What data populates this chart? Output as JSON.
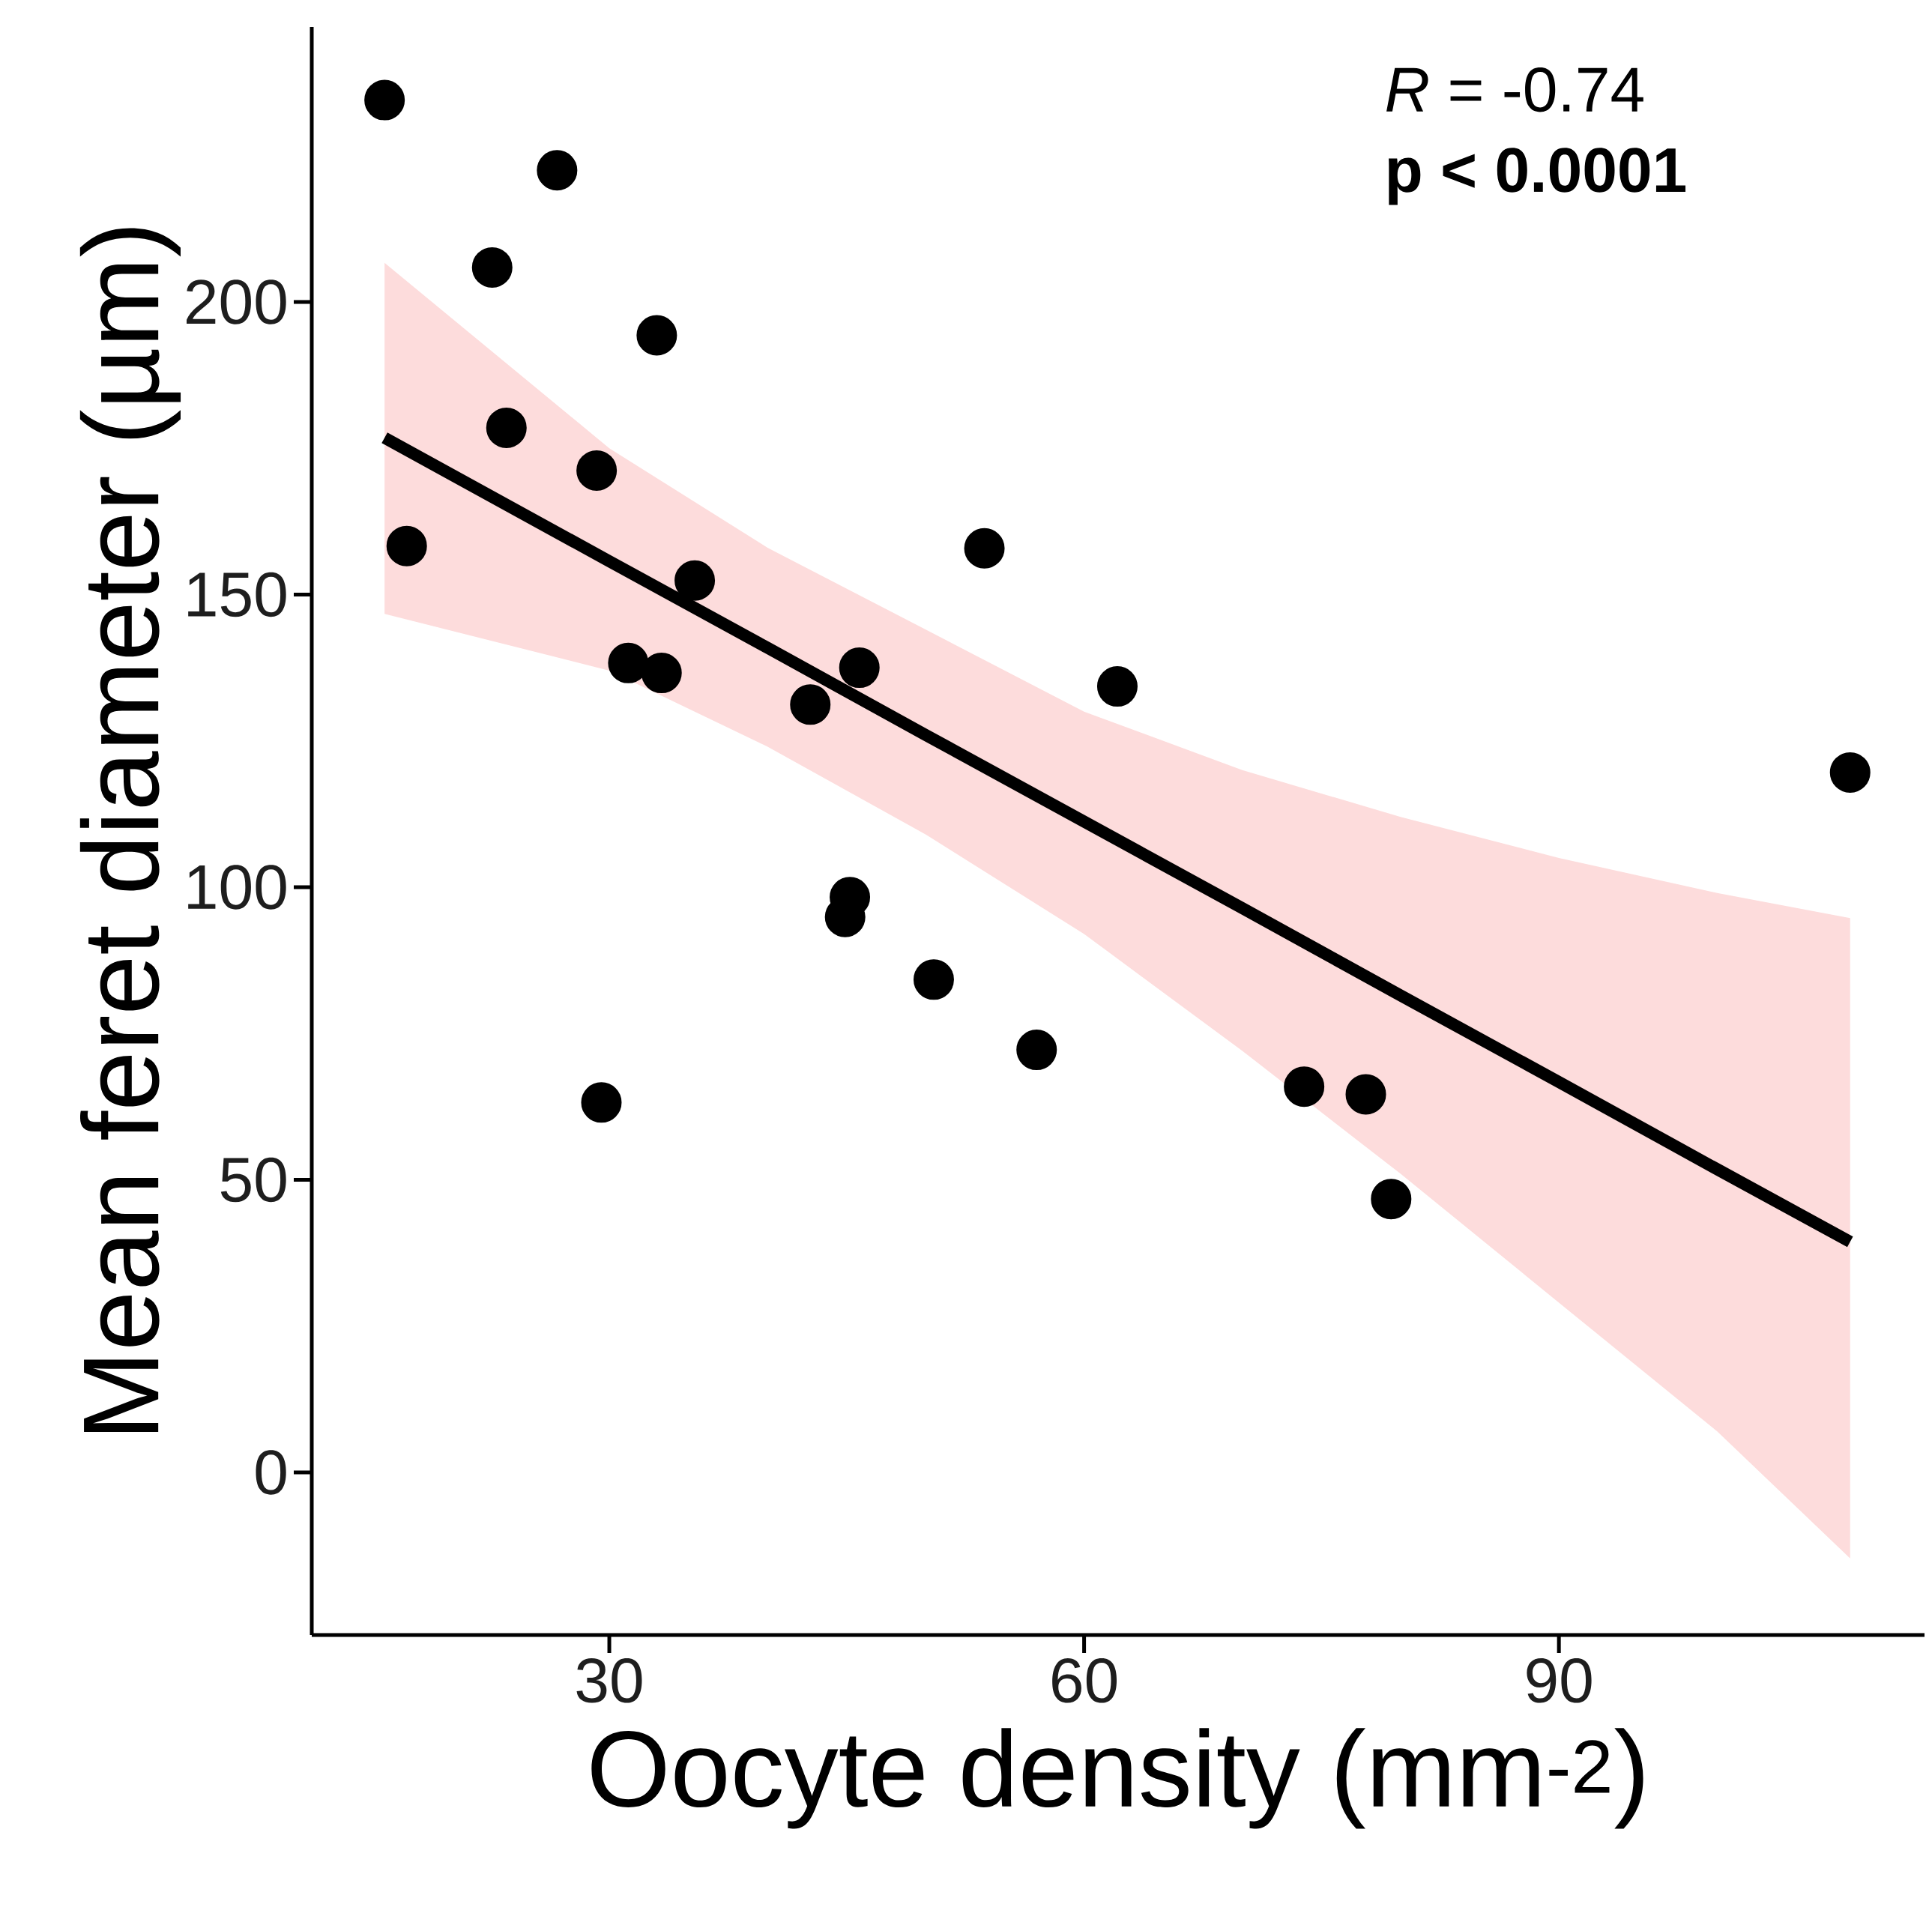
{
  "chart_data": {
    "type": "scatter",
    "xlabel": "Oocyte density (mm$^{-2}$)",
    "ylabel": "Mean feret diameter (µm)",
    "xlim": [
      11.2,
      113.1
    ],
    "ylim": [
      -27.8,
      247
    ],
    "xticks": [
      30,
      60,
      90
    ],
    "yticks": [
      0,
      50,
      100,
      150,
      200
    ],
    "annotations": [
      "*R* = -0.74",
      "**p < 0.0001**"
    ],
    "marker": "circle",
    "series": [
      {
        "color": "#000000",
        "x": [
          15.8,
          26.7,
          22.6,
          33.0,
          53.7,
          62.1,
          108.4,
          45.2,
          44.9,
          50.5,
          57.0,
          29.5,
          79.4,
          17.2,
          23.5,
          29.2,
          35.4,
          31.2,
          33.3,
          42.7,
          45.8,
          73.9,
          77.8
        ],
        "values": [
          234.5,
          222.5,
          205.9,
          194.3,
          157.9,
          134.3,
          119.6,
          98.3,
          94.9,
          84.2,
          72.2,
          63.2,
          46.7,
          158.3,
          178.5,
          171.2,
          152.4,
          138.3,
          136.6,
          131.2,
          137.5,
          65.9,
          64.6
        ]
      },
      {
        "type": "line",
        "marker": "none",
        "color": "#000000",
        "x": [
          15.8,
          30,
          40,
          50,
          60,
          70,
          80,
          90,
          100,
          108.4
        ],
        "values": [
          176.8,
          155.7,
          140.9,
          126.0,
          111.2,
          96.4,
          81.5,
          66.7,
          51.8,
          39.4
        ],
        "lower": [
          146.7,
          137,
          124,
          109,
          92,
          72,
          51,
          29,
          7,
          -14.7
        ],
        "upper": [
          206.7,
          175,
          158,
          144,
          130,
          120,
          112,
          105,
          99,
          94.7
        ]
      }
    ]
  }
}
